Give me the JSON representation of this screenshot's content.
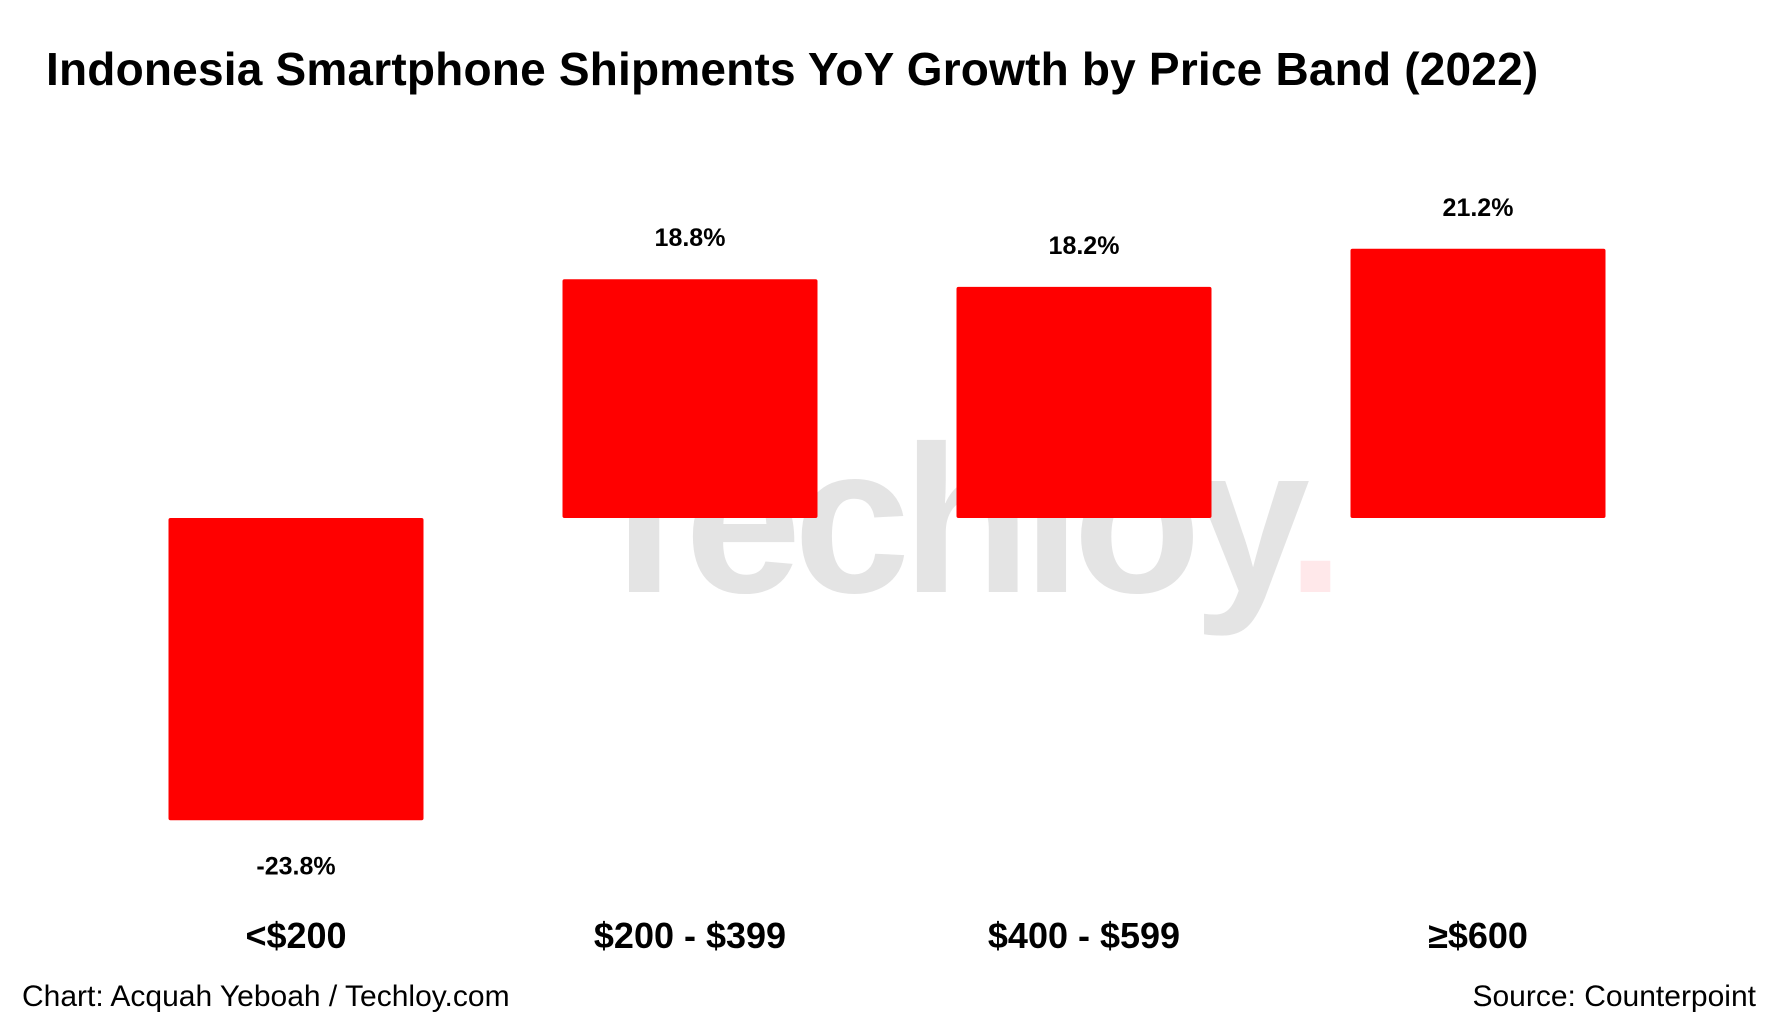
{
  "chart_data": {
    "type": "bar",
    "title": "Indonesia Smartphone Shipments YoY Growth by Price Band (2022)",
    "categories": [
      "<$200",
      "$200 - $399",
      "$400 - $599",
      "≥$600"
    ],
    "values": [
      -23.8,
      18.8,
      18.2,
      21.2
    ],
    "data_labels": [
      "-23.8%",
      "18.8%",
      "18.2%",
      "21.2%"
    ],
    "xlabel": "",
    "ylabel": "",
    "ylim": [
      -30,
      25
    ],
    "grid": false,
    "legend": "none",
    "bar_color": "#FF0000"
  },
  "watermark": {
    "text": "Techloy",
    "dot": "."
  },
  "footer": {
    "credit": "Chart: Acquah Yeboah / Techloy.com",
    "source": "Source: Counterpoint"
  }
}
